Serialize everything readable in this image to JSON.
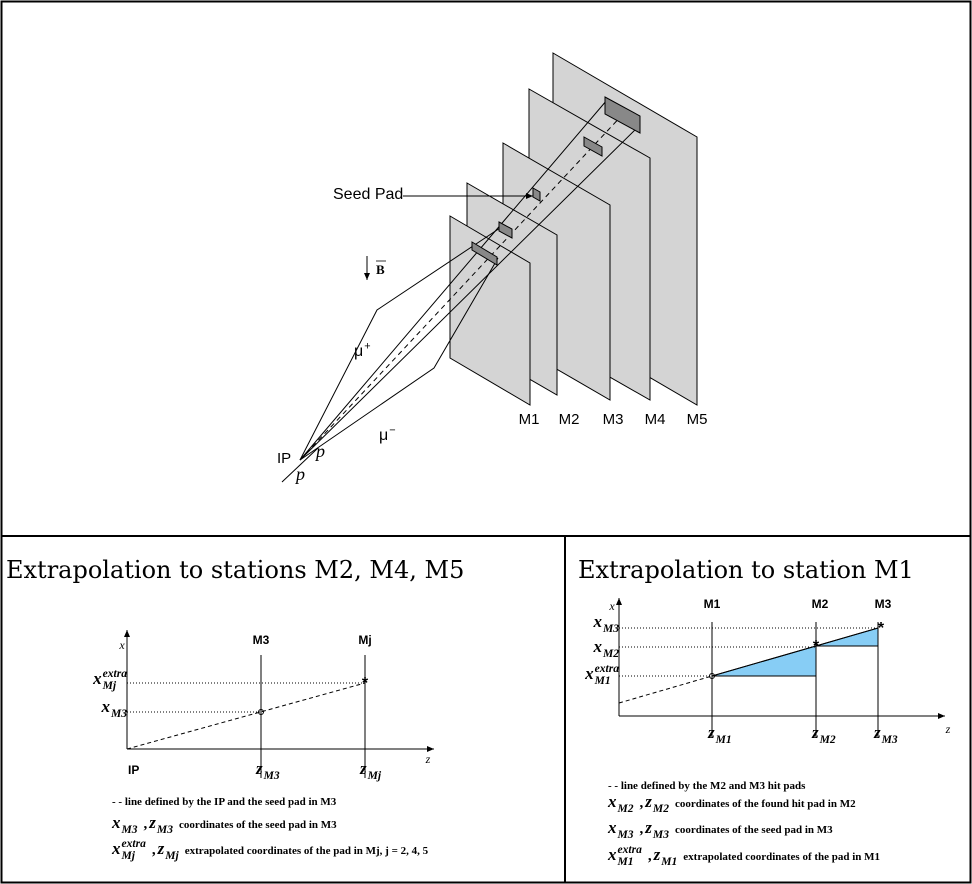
{
  "top": {
    "seed_pad": "Seed Pad",
    "field": "B",
    "mu_plus": {
      "base": "μ",
      "sup": "+"
    },
    "mu_minus": {
      "base": "μ",
      "sup": "−"
    },
    "ip": "IP",
    "proton_1": "p",
    "proton_2": "p",
    "stations": [
      "M1",
      "M2",
      "M3",
      "M4",
      "M5"
    ]
  },
  "left_panel": {
    "title": "Extrapolation to stations M2, M4, M5",
    "axis_x": "x",
    "axis_z": "z",
    "stations": [
      "M3",
      "Mj"
    ],
    "origin": "IP",
    "y_labels": [
      {
        "base": "x",
        "sub": "Mj",
        "sup": "extra"
      },
      {
        "base": "x",
        "sub": "M3"
      }
    ],
    "z_labels": [
      {
        "base": "z",
        "sub": "M3"
      },
      {
        "base": "z",
        "sub": "Mj"
      }
    ],
    "legend": [
      [
        "- - line defined by the IP and the seed pad in M3"
      ],
      [
        {
          "base": "x",
          "sub": "M3"
        },
        ",",
        {
          "base": "z",
          "sub": "M3"
        },
        "coordinates of the seed pad in M3"
      ],
      [
        {
          "base": "x",
          "sub": "Mj",
          "sup": "extra"
        },
        ",",
        {
          "base": "z",
          "sub": "Mj"
        },
        "extrapolated coordinates of the pad in Mj, j = 2, 4, 5"
      ]
    ]
  },
  "right_panel": {
    "title": "Extrapolation to station M1",
    "axis_x": "x",
    "axis_z": "z",
    "stations": [
      "M1",
      "M2",
      "M3"
    ],
    "y_labels": [
      {
        "base": "x",
        "sub": "M3"
      },
      {
        "base": "x",
        "sub": "M2"
      },
      {
        "base": "x",
        "sub": "M1",
        "sup": "extra"
      }
    ],
    "z_labels": [
      {
        "base": "z",
        "sub": "M1"
      },
      {
        "base": "z",
        "sub": "M2"
      },
      {
        "base": "z",
        "sub": "M3"
      }
    ],
    "legend": [
      [
        "- - line defined by the M2 and M3 hit pads"
      ],
      [
        {
          "base": "x",
          "sub": "M2"
        },
        ",",
        {
          "base": "z",
          "sub": "M2"
        },
        "coordinates of the found hit pad in M2"
      ],
      [
        {
          "base": "x",
          "sub": "M3"
        },
        ",",
        {
          "base": "z",
          "sub": "M3"
        },
        "coordinates of the seed pad in M3"
      ],
      [
        {
          "base": "x",
          "sub": "M1",
          "sup": "extra"
        },
        ",",
        {
          "base": "z",
          "sub": "M1"
        },
        "extrapolated coordinates of the pad in M1"
      ]
    ]
  }
}
